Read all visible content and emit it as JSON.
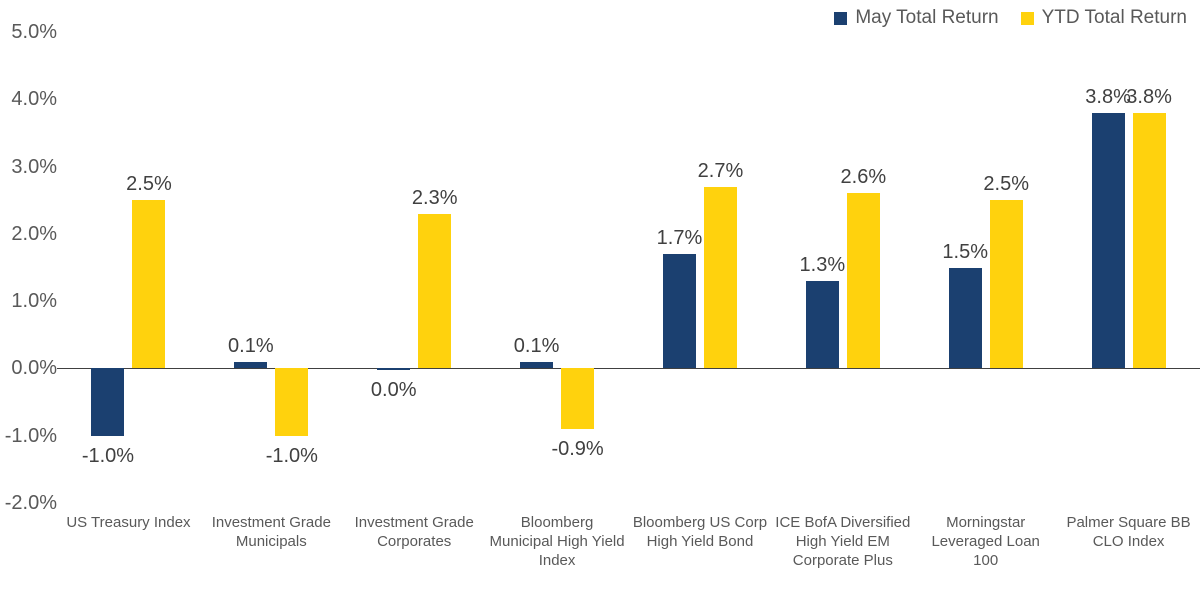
{
  "chart_data": {
    "type": "bar",
    "title": "",
    "xlabel": "",
    "ylabel": "",
    "ylim": [
      -2,
      5
    ],
    "grid": false,
    "legend_position": "top-right",
    "axis_line_color": "#404040",
    "categories": [
      "US Treasury Index",
      "Investment Grade Municipals",
      "Investment Grade Corporates",
      "Bloomberg Municipal  High Yield Index",
      "Bloomberg US Corp High Yield Bond",
      "ICE BofA Diversified High Yield EM Corporate Plus",
      "Morningstar Leveraged Loan 100",
      "Palmer Square BB CLO Index"
    ],
    "series": [
      {
        "name": "May Total Return",
        "color": "#1B4070",
        "values": [
          -1.0,
          0.1,
          0.0,
          0.1,
          1.7,
          1.3,
          1.5,
          3.8
        ],
        "labels": [
          "-1.0%",
          "0.1%",
          "0.0%",
          "0.1%",
          "1.7%",
          "1.3%",
          "1.5%",
          "3.8%"
        ]
      },
      {
        "name": "YTD Total Return",
        "color": "#FFD20D",
        "values": [
          2.5,
          -1.0,
          2.3,
          -0.9,
          2.7,
          2.6,
          2.5,
          3.8
        ],
        "labels": [
          "2.5%",
          "-1.0%",
          "2.3%",
          "-0.9%",
          "2.7%",
          "2.6%",
          "2.5%",
          "3.8%"
        ]
      }
    ],
    "yticks": [
      {
        "value": 5,
        "label": "5.0%"
      },
      {
        "value": 4,
        "label": "4.0%"
      },
      {
        "value": 3,
        "label": "3.0%"
      },
      {
        "value": 2,
        "label": "2.0%"
      },
      {
        "value": 1,
        "label": "1.0%"
      },
      {
        "value": 0,
        "label": "0.0%"
      },
      {
        "value": -1,
        "label": "-1.0%"
      },
      {
        "value": -2,
        "label": "-2.0%"
      }
    ]
  }
}
